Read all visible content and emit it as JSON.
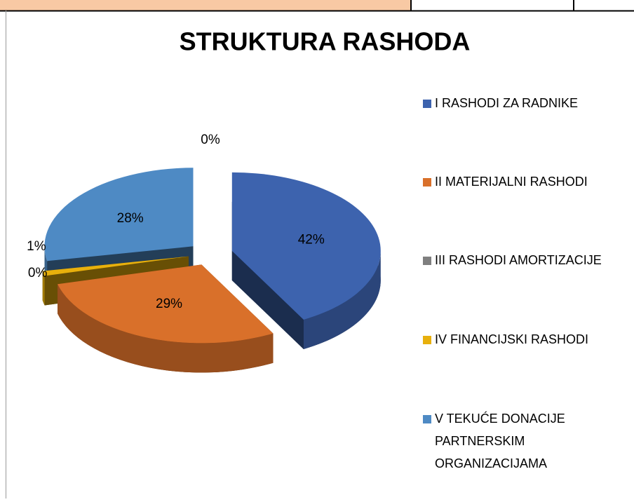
{
  "chart_data": {
    "type": "pie3d",
    "title": "STRUKTURA RASHODA",
    "categories": [
      "I RASHODI ZA RADNIKE",
      "II MATERIJALNI RASHODI",
      "III RASHODI AMORTIZACIJE",
      "IV FINANCIJSKI RASHODI",
      "V TEKUĆE DONACIJE PARTNERSKIM ORGANIZACIJAMA",
      null
    ],
    "values": [
      42,
      29,
      0,
      1,
      28,
      0
    ],
    "value_labels": [
      "42%",
      "29%",
      "0%",
      "1%",
      "28%",
      "0%"
    ],
    "colors": [
      "#3d63ae",
      "#d9702a",
      "#7f7f7f",
      "#e8b00c",
      "#4e8ac4",
      "#2c4d75"
    ],
    "legend": "right"
  }
}
